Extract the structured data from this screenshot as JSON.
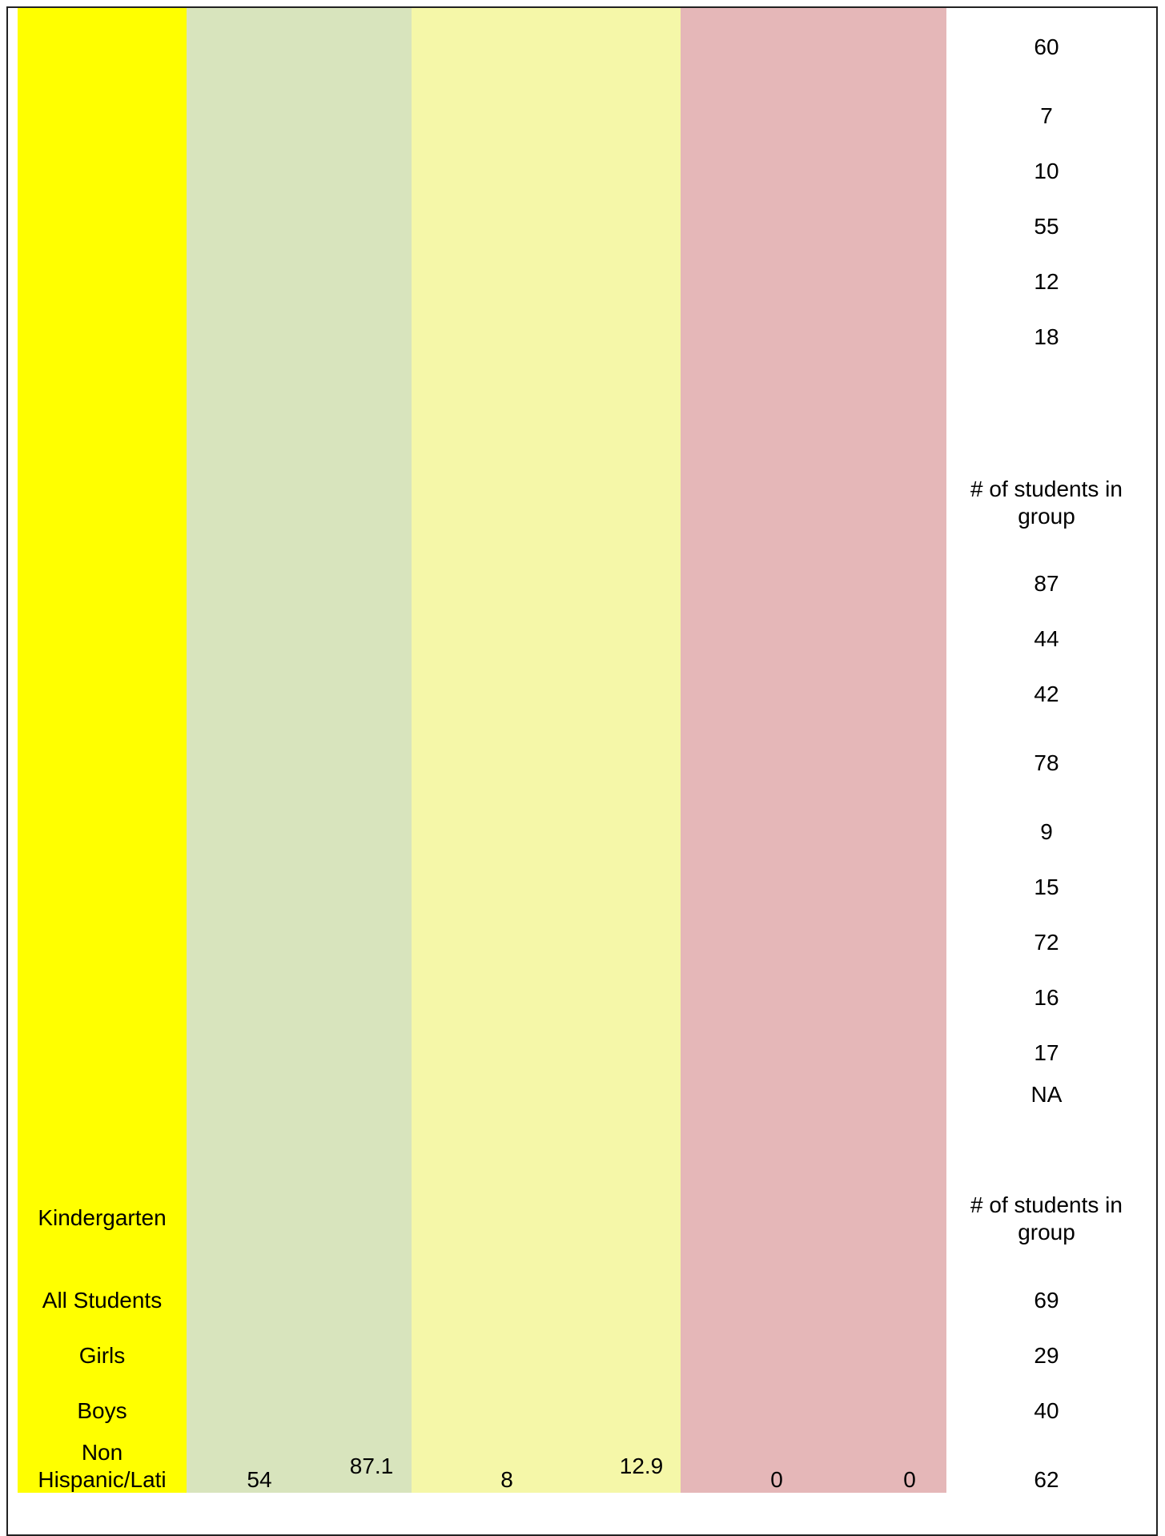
{
  "section_top": {
    "counts": [
      "60",
      "7",
      "10",
      "55",
      "12",
      "18"
    ]
  },
  "section_middle": {
    "count_header": "# of students in group",
    "counts": [
      "87",
      "44",
      "42",
      "78",
      "9",
      "15",
      "72",
      "16",
      "17",
      "NA"
    ]
  },
  "section_kindergarten": {
    "title": "Kindergarten",
    "count_header": "# of students in group",
    "rows": [
      {
        "label": "All Students",
        "count": "69"
      },
      {
        "label": "Girls",
        "count": "29"
      },
      {
        "label": "Boys",
        "count": "40"
      },
      {
        "label": "Non Hispanic/Lati",
        "green_n": "54",
        "green_pct": "87.1",
        "yellow_n": "8",
        "yellow_pct": "12.9",
        "red_n": "0",
        "red_pct": "0",
        "count": "62"
      }
    ]
  },
  "colors": {
    "label_column": "#ffff00",
    "green_column": "#d8e4bd",
    "yellow_column": "#f5f7a8",
    "red_column": "#e5b7b8"
  }
}
